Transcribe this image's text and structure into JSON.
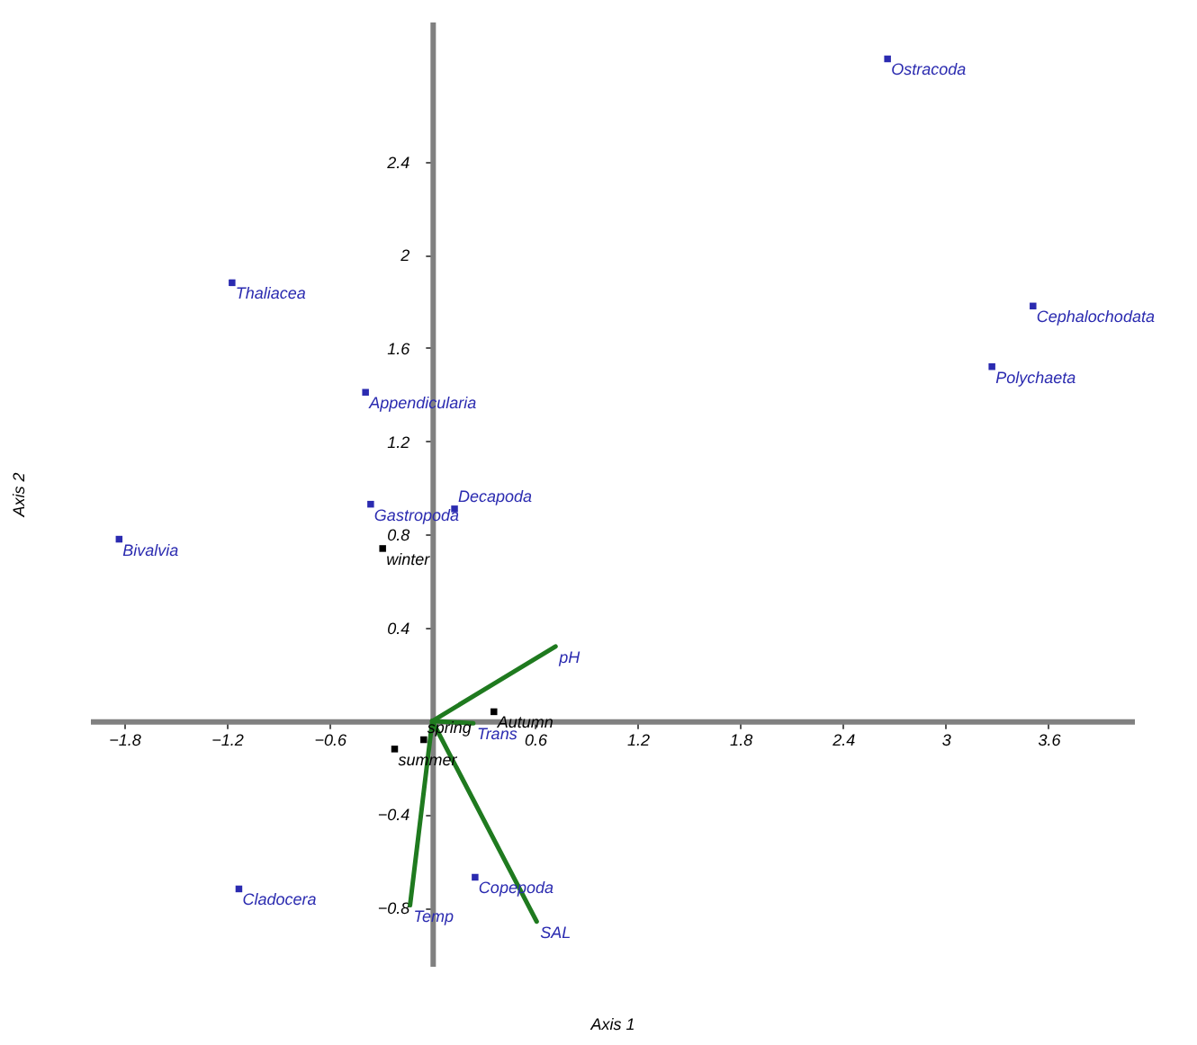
{
  "chart_data": {
    "type": "scatter",
    "xlabel": "Axis 1",
    "ylabel": "Axis 2",
    "xlim": [
      -2.0,
      4.1
    ],
    "ylim": [
      -1.05,
      3.0
    ],
    "xticks": [
      -1.8,
      -1.2,
      -0.6,
      0.6,
      1.2,
      1.8,
      2.4,
      3,
      3.6
    ],
    "yticks": [
      -0.8,
      -0.4,
      0.4,
      0.8,
      1.2,
      1.6,
      2,
      2.4
    ],
    "grid": false,
    "series": [
      {
        "marker": "square",
        "color": "#2b2bb0",
        "x": [
          2.66,
          3.51,
          3.27,
          -1.17,
          -0.39,
          -0.36,
          0.13,
          -1.83,
          -1.13,
          0.25
        ],
        "values": [
          2.84,
          1.78,
          1.52,
          1.88,
          1.41,
          0.93,
          0.91,
          0.78,
          -0.72,
          -0.67
        ],
        "value_labels": [
          "Ostracoda",
          "Cephalochodata",
          "Polychaeta",
          "Thaliacea",
          "Appendicularia",
          "Gastropoda",
          "Decapoda",
          "Bivalvia",
          "Cladocera",
          "Copepoda"
        ]
      },
      {
        "marker": "square",
        "color": "#000000",
        "x": [
          -0.29,
          0.36,
          -0.22,
          -0.05
        ],
        "values": [
          0.74,
          0.04,
          -0.12,
          -0.08
        ],
        "value_labels": [
          "winter",
          "Autumn",
          "summer",
          "spring"
        ]
      },
      {
        "type": "line",
        "color": "#1f7a1f",
        "x": [
          0,
          0.72
        ],
        "values": [
          0,
          0.32
        ]
      },
      {
        "type": "line",
        "color": "#1f7a1f",
        "x": [
          0,
          0.24
        ],
        "values": [
          0,
          -0.01
        ]
      },
      {
        "type": "line",
        "color": "#1f7a1f",
        "x": [
          0,
          -0.13
        ],
        "values": [
          0,
          -0.79
        ]
      },
      {
        "type": "line",
        "color": "#1f7a1f",
        "x": [
          0,
          0.61
        ],
        "values": [
          0,
          -0.86
        ]
      }
    ],
    "annotations": [
      {
        "text": "pH",
        "x": 0.72,
        "y": 0.32
      },
      {
        "text": "Trans",
        "x": 0.24,
        "y": -0.01
      },
      {
        "text": "Temp",
        "x": -0.13,
        "y": -0.79
      },
      {
        "text": "SAL",
        "x": 0.61,
        "y": -0.86
      }
    ]
  }
}
